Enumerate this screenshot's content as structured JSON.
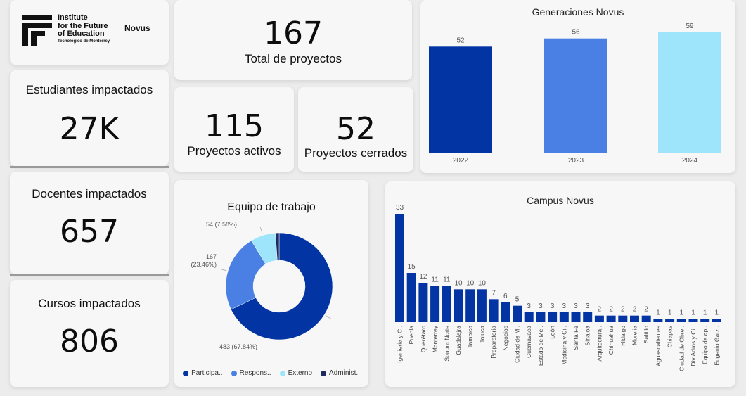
{
  "logo": {
    "line1": "Institute",
    "line2": "for the Future",
    "line3": "of Education",
    "line4": "Tecnológico de Monterrey",
    "brand": "Novus"
  },
  "kpis": {
    "total_proyectos": {
      "value": "167",
      "label": "Total de proyectos"
    },
    "proyectos_activos": {
      "value": "115",
      "label": "Proyectos activos"
    },
    "proyectos_cerrados": {
      "value": "52",
      "label": "Proyectos cerrados"
    },
    "estudiantes": {
      "label": "Estudiantes impactados",
      "value": "27K"
    },
    "docentes": {
      "label": "Docentes impactados",
      "value": "657"
    },
    "cursos": {
      "label": "Cursos impactados",
      "value": "806"
    }
  },
  "colors": {
    "dark_blue": "#0334a4",
    "mid_blue": "#4a7fe4",
    "light_blue": "#9ee4fb",
    "navy": "#1f2a5e"
  },
  "chart_data": [
    {
      "type": "bar",
      "title": "Generaciones Novus",
      "categories": [
        "2022",
        "2023",
        "2024"
      ],
      "values": [
        52,
        56,
        59
      ],
      "colors": [
        "#0334a4",
        "#4a7fe4",
        "#9ee4fb"
      ],
      "ylim": [
        0,
        59
      ]
    },
    {
      "type": "pie",
      "title": "Equipo de trabajo",
      "labels": [
        "Participa..",
        "Respons..",
        "Externo",
        "Administ.."
      ],
      "values": [
        483,
        167,
        54,
        8
      ],
      "value_labels": [
        "483 (67.84%)",
        "167 (23.46%)",
        "54 (7.58%)",
        ""
      ],
      "colors": [
        "#0334a4",
        "#4a7fe4",
        "#9ee4fb",
        "#1f2a5e"
      ]
    },
    {
      "type": "bar",
      "title": "Campus Novus",
      "categories": [
        "Igeniería y C..",
        "Puebla",
        "Querétaro",
        "Monterrey",
        "Sonora Norte",
        "Guadalajra",
        "Tampico",
        "Toluca",
        "Preparatoria",
        "Negocios",
        "Ciudad de M..",
        "Cuernavaca",
        "Estado de Mé..",
        "León",
        "Medicina y Ci..",
        "Santa Fe",
        "Sinaloa",
        "Arquitectura..",
        "Chihuahua",
        "Hidalgo",
        "Morelia",
        "Saltillo",
        "Aguascalientes",
        "Chiapas",
        "Ciudad de Obre..",
        "Div Adms y Ci..",
        "Equipo de ap..",
        "Eugenio Garz.."
      ],
      "values": [
        33,
        15,
        12,
        11,
        11,
        10,
        10,
        10,
        7,
        6,
        5,
        3,
        3,
        3,
        3,
        3,
        3,
        2,
        2,
        2,
        2,
        2,
        1,
        1,
        1,
        1,
        1,
        1
      ],
      "color": "#0334a4",
      "ylim": [
        0,
        33
      ]
    }
  ]
}
